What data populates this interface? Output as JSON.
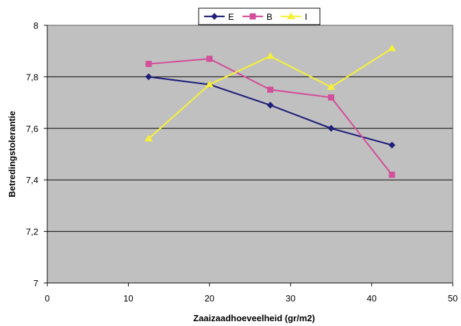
{
  "chart_data": {
    "type": "line",
    "xlabel": "Zaaizaadhoeveelheid (gr/m2)",
    "ylabel": "Betredingstolerantie",
    "xlim": [
      0,
      50
    ],
    "ylim": [
      7,
      8
    ],
    "xticks": [
      0,
      10,
      20,
      30,
      40,
      50
    ],
    "yticks": [
      7,
      7.2,
      7.4,
      7.6,
      7.8,
      8
    ],
    "xtick_labels": [
      "0",
      "10",
      "20",
      "30",
      "40",
      "50"
    ],
    "ytick_labels": [
      "7",
      "7,2",
      "7,4",
      "7,6",
      "7,8",
      "8"
    ],
    "grid": "horizontal",
    "legend_position": "top-center",
    "plot_background": "#c0c0c0",
    "series": [
      {
        "name": "E",
        "color": "#1f1f7a",
        "marker": "diamond",
        "x": [
          12.5,
          20,
          27.5,
          35,
          42.5
        ],
        "y": [
          7.8,
          7.77,
          7.69,
          7.6,
          7.535
        ]
      },
      {
        "name": "B",
        "color": "#d2509a",
        "marker": "square",
        "x": [
          12.5,
          20,
          27.5,
          35,
          42.5
        ],
        "y": [
          7.85,
          7.87,
          7.75,
          7.72,
          7.42
        ]
      },
      {
        "name": "I",
        "color": "#f5f03c",
        "marker": "triangle",
        "x": [
          12.5,
          20,
          27.5,
          35,
          42.5
        ],
        "y": [
          7.56,
          7.77,
          7.88,
          7.76,
          7.91
        ]
      }
    ]
  }
}
